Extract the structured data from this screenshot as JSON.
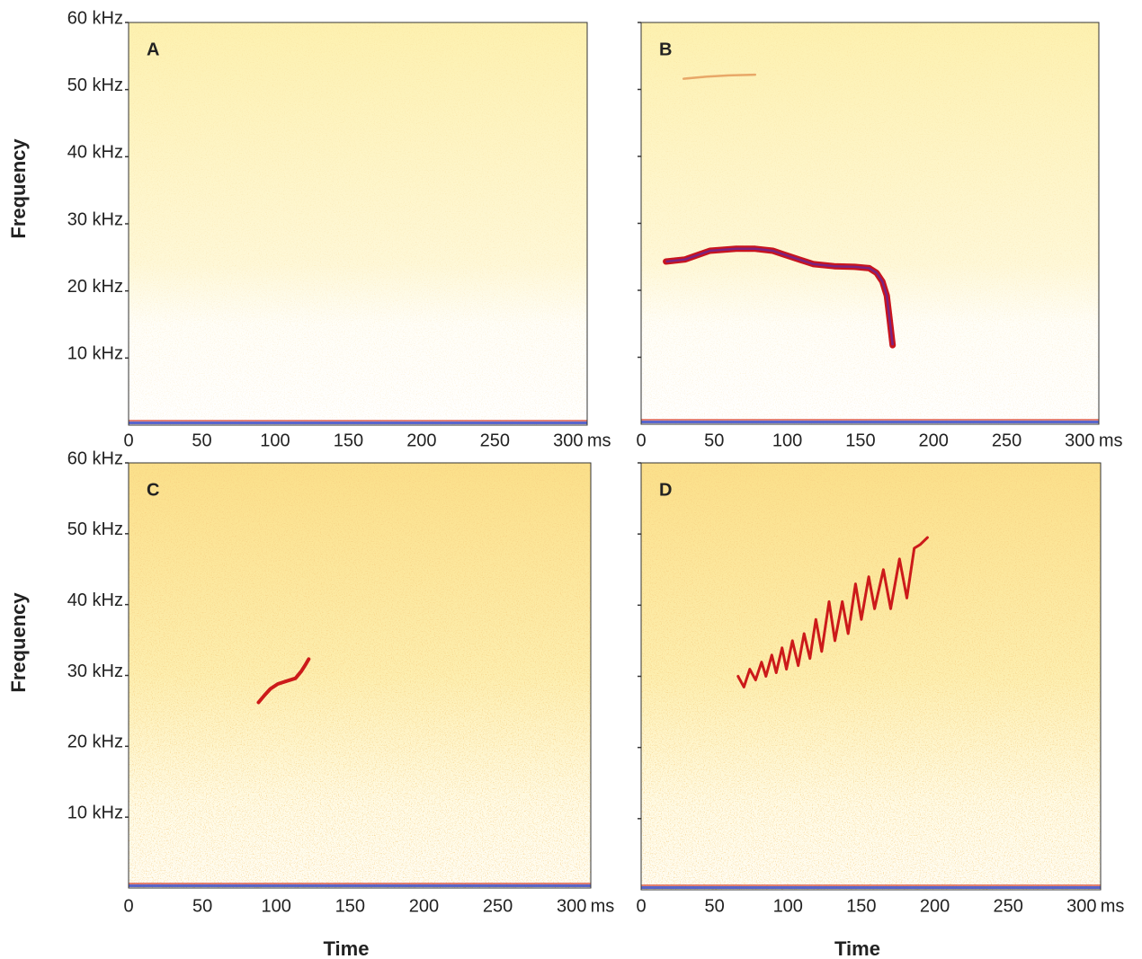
{
  "chart_data": [
    {
      "type": "spectrogram",
      "label": "A",
      "ylabel": "Frequency",
      "show_ytick_labels": true,
      "x_unit": "ms",
      "xlim": [
        0,
        313
      ],
      "xticks": [
        0,
        50,
        100,
        150,
        200,
        250,
        300
      ],
      "ylim": [
        0,
        60
      ],
      "yticks": [
        {
          "value": 10,
          "label": "10 kHz"
        },
        {
          "value": 20,
          "label": "20 kHz"
        },
        {
          "value": 30,
          "label": "30 kHz"
        },
        {
          "value": 40,
          "label": "40 kHz"
        },
        {
          "value": 50,
          "label": "50 kHz"
        },
        {
          "value": 60,
          "label": "60 kHz"
        }
      ],
      "series": []
    },
    {
      "type": "spectrogram",
      "label": "B",
      "show_ytick_labels": false,
      "x_unit": "ms",
      "xlim": [
        0,
        313
      ],
      "xticks": [
        0,
        50,
        100,
        150,
        200,
        250,
        300
      ],
      "ylim": [
        0,
        60
      ],
      "yticks": [
        10,
        20,
        30,
        40,
        50,
        60
      ],
      "series": [
        {
          "color": "#c8141e",
          "x": [
            17,
            30,
            47,
            65,
            78,
            90,
            97,
            108,
            118,
            132,
            146,
            156,
            161,
            165,
            168,
            170,
            172
          ],
          "values": [
            24.3,
            24.6,
            25.9,
            26.2,
            26.2,
            25.9,
            25.4,
            24.6,
            23.9,
            23.6,
            23.5,
            23.3,
            22.6,
            21.3,
            19.2,
            15.5,
            11.8
          ]
        },
        {
          "color": "#e8a868",
          "x": [
            29,
            45,
            60,
            78
          ],
          "values": [
            51.6,
            51.9,
            52.1,
            52.2
          ]
        }
      ]
    },
    {
      "type": "spectrogram",
      "label": "C",
      "xlabel": "Time",
      "ylabel": "Frequency",
      "show_ytick_labels": true,
      "x_unit": "ms",
      "xlim": [
        0,
        313
      ],
      "xticks": [
        0,
        50,
        100,
        150,
        200,
        250,
        300
      ],
      "ylim": [
        0,
        60
      ],
      "yticks": [
        {
          "value": 10,
          "label": "10 kHz"
        },
        {
          "value": 20,
          "label": "20 kHz"
        },
        {
          "value": 30,
          "label": "30 kHz"
        },
        {
          "value": 40,
          "label": "40 kHz"
        },
        {
          "value": 50,
          "label": "50 kHz"
        },
        {
          "value": 60,
          "label": "60 kHz"
        }
      ],
      "series": [
        {
          "color": "#cc1a1a",
          "x": [
            88,
            92,
            96,
            101,
            107,
            113,
            117,
            120,
            122
          ],
          "values": [
            26.2,
            27.2,
            28.1,
            28.8,
            29.2,
            29.6,
            30.6,
            31.6,
            32.3
          ]
        }
      ]
    },
    {
      "type": "spectrogram",
      "label": "D",
      "xlabel": "Time",
      "show_ytick_labels": false,
      "x_unit": "ms",
      "xlim": [
        0,
        313
      ],
      "xticks": [
        0,
        50,
        100,
        150,
        200,
        250,
        300
      ],
      "ylim": [
        0,
        60
      ],
      "yticks": [
        10,
        20,
        30,
        40,
        50,
        60
      ],
      "series": [
        {
          "color": "#cc1a1a",
          "x": [
            66,
            70,
            74,
            78,
            82,
            85,
            89,
            92,
            96,
            99,
            103,
            107,
            111,
            115,
            119,
            123,
            128,
            132,
            137,
            141,
            146,
            150,
            155,
            159,
            165,
            170,
            176,
            181,
            186,
            190,
            195
          ],
          "values": [
            30,
            28.5,
            31,
            29.5,
            32,
            30,
            33,
            30.5,
            34,
            31,
            35,
            31.5,
            36,
            32.5,
            38,
            33.5,
            40.5,
            35,
            40.5,
            36,
            43,
            38,
            44,
            39.5,
            45,
            39.5,
            46.5,
            41,
            48,
            48.5,
            49.5
          ]
        }
      ]
    }
  ]
}
